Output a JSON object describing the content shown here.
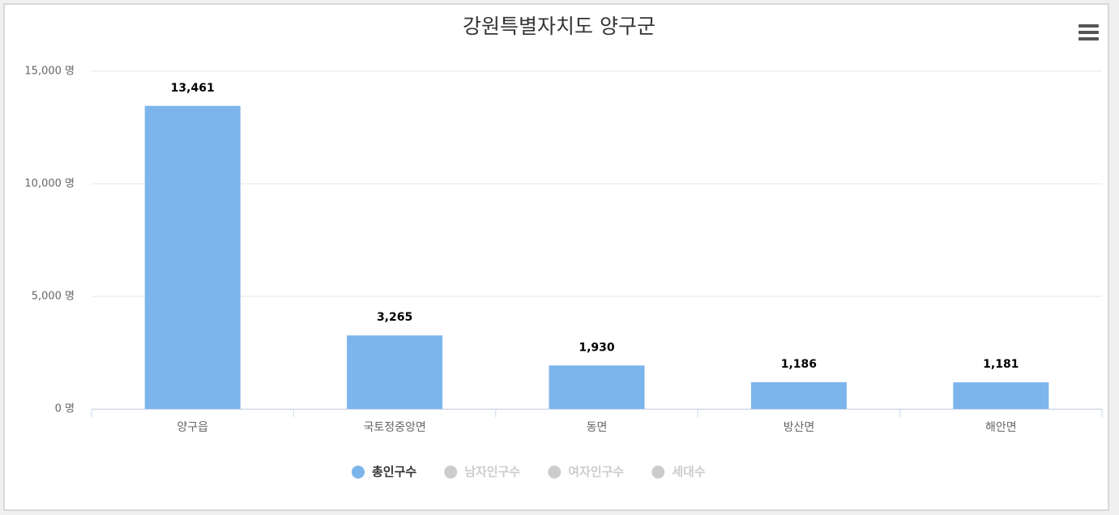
{
  "chart_data": {
    "type": "bar",
    "title": "강원특별자치도 양구군",
    "categories": [
      "양구읍",
      "국토정중앙면",
      "동면",
      "방산면",
      "해안면"
    ],
    "series": [
      {
        "name": "총인구수",
        "color": "#7cb5ec",
        "values": [
          13461,
          3265,
          1930,
          1186,
          1181
        ],
        "value_labels": [
          "13,461",
          "3,265",
          "1,930",
          "1,186",
          "1,181"
        ]
      }
    ],
    "hidden_series": [
      {
        "name": "남자인구수"
      },
      {
        "name": "여자인구수"
      },
      {
        "name": "세대수"
      }
    ],
    "hidden_color": "#cccccc",
    "ylim": [
      0,
      15000
    ],
    "yticks": [
      {
        "value": 0,
        "label": "0 명"
      },
      {
        "value": 5000,
        "label": "5,000 명"
      },
      {
        "value": 10000,
        "label": "10,000 명"
      },
      {
        "value": 15000,
        "label": "15,000 명"
      }
    ],
    "grid": true,
    "legend": "bottom"
  }
}
